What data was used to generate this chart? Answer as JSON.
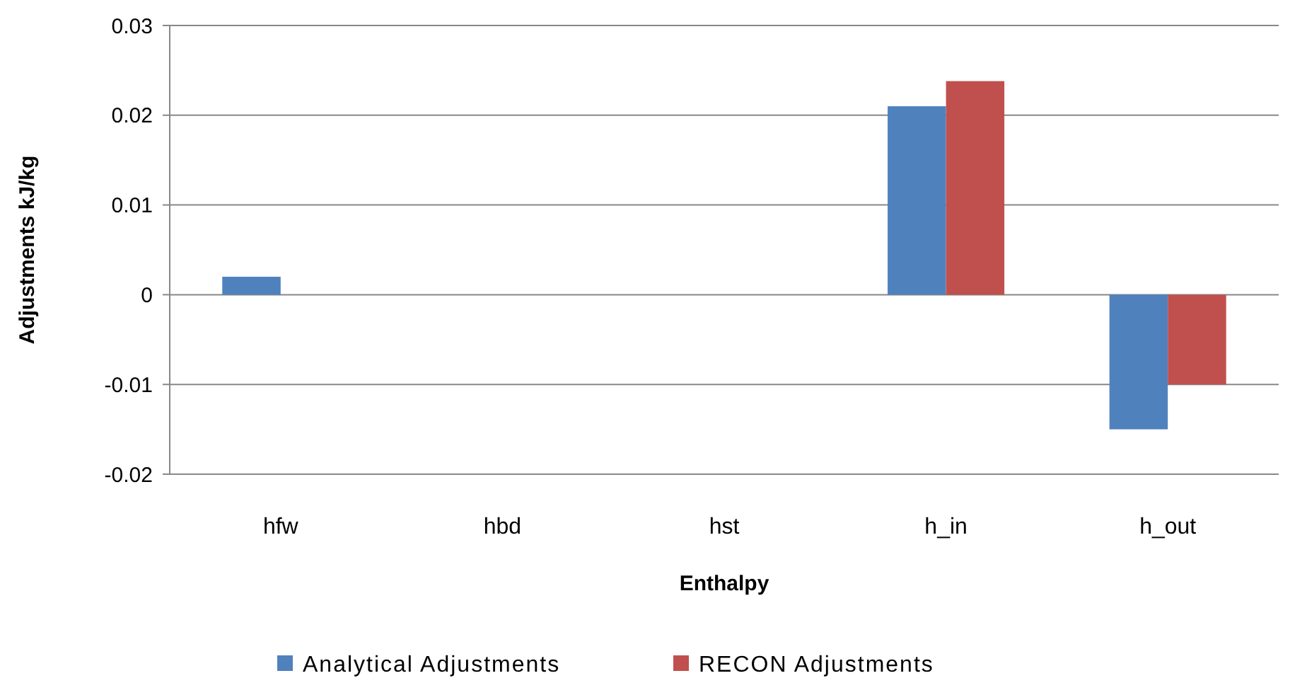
{
  "chart_data": {
    "type": "bar",
    "xlabel": "Enthalpy",
    "ylabel": "Adjustments kJ/kg",
    "categories": [
      "hfw",
      "hbd",
      "hst",
      "h_in",
      "h_out"
    ],
    "series": [
      {
        "name": "Analytical Adjustments",
        "color": "#4f81bd",
        "values": [
          0.002,
          0,
          0,
          0.021,
          -0.015
        ]
      },
      {
        "name": "RECON Adjustments",
        "color": "#c0504d",
        "values": [
          0,
          0,
          0,
          0.0238,
          -0.01
        ]
      }
    ],
    "ylim": [
      -0.02,
      0.03
    ],
    "yticks": [
      -0.02,
      -0.01,
      0,
      0.01,
      0.02,
      0.03
    ],
    "grid": "y",
    "legend": "bottom"
  }
}
